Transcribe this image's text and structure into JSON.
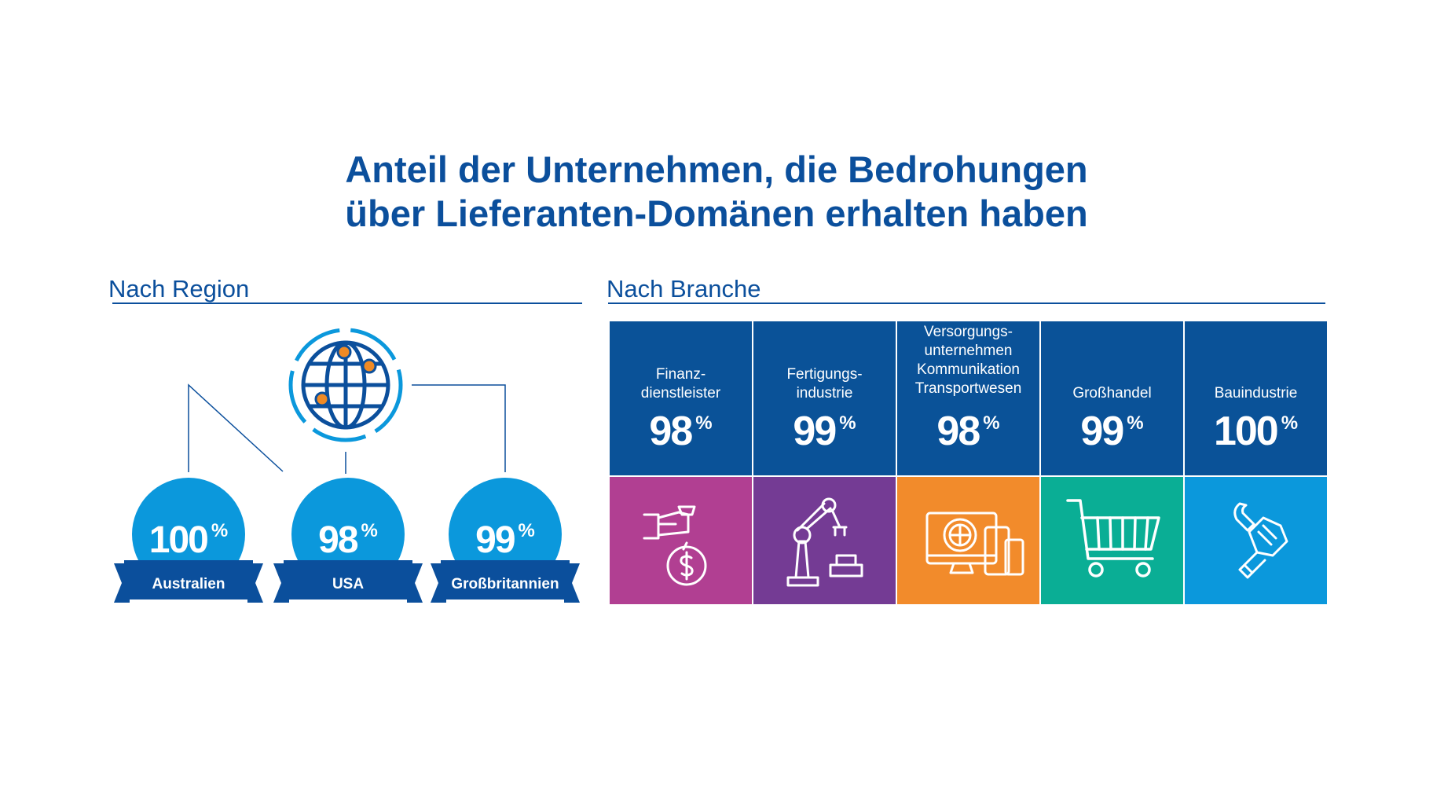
{
  "title_line1": "Anteil der Unternehmen, die Bedrohungen",
  "title_line2": "über Lieferanten-Domänen erhalten haben",
  "colors": {
    "brand_blue": "#0b4f9c",
    "tile_blue": "#0a5298",
    "badge_blue": "#0b98dc",
    "ribbon": "#0b4f9c",
    "dot_orange": "#f08a24"
  },
  "chart_data": [
    {
      "type": "table",
      "title": "Nach Region",
      "categories": [
        "Australien",
        "USA",
        "Großbritannien"
      ],
      "values": [
        100,
        98,
        99
      ],
      "unit": "%",
      "icon": "globe-icon"
    },
    {
      "type": "table",
      "title": "Nach Branche",
      "categories": [
        [
          "Finanz-",
          "dienstleister"
        ],
        [
          "Fertigungs-",
          "industrie"
        ],
        [
          "Versorgungs-",
          "unternehmen",
          "Kommunikation",
          "Transportwesen"
        ],
        [
          "Großhandel"
        ],
        [
          "Bauindustrie"
        ]
      ],
      "values": [
        98,
        99,
        98,
        99,
        100
      ],
      "unit": "%",
      "tile_colors": [
        "#b13f92",
        "#743b94",
        "#f28b2b",
        "#0aae95",
        "#0b98dc"
      ],
      "icons": [
        "money-bag-hand-icon",
        "robot-arm-icon",
        "devices-icon",
        "shopping-cart-icon",
        "wrench-glove-icon"
      ]
    }
  ]
}
